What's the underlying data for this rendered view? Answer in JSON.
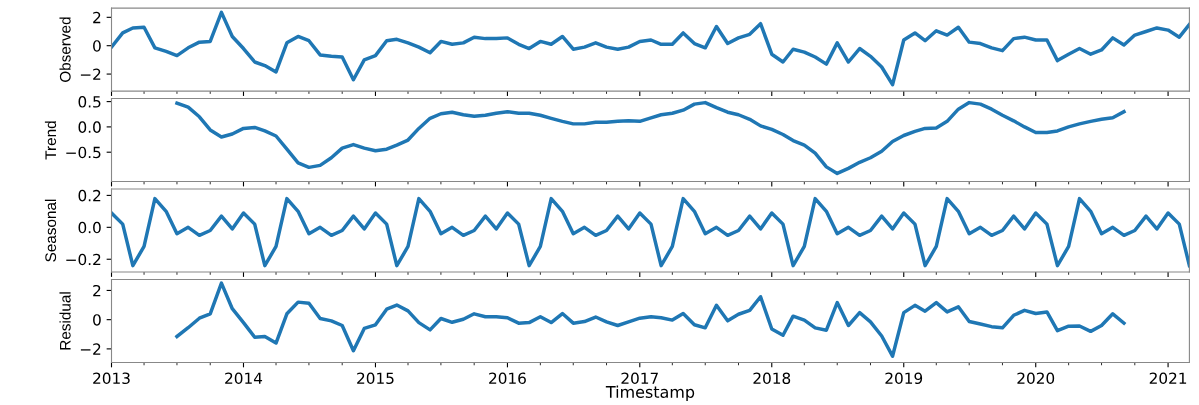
{
  "chart_data": [
    {
      "type": "line",
      "ylabel": "Observed",
      "tick_labels": "y",
      "x": [
        "2013-01",
        "2013-02",
        "2013-03",
        "2013-04",
        "2013-05",
        "2013-06",
        "2013-07",
        "2013-08",
        "2013-09",
        "2013-10",
        "2013-11",
        "2013-12",
        "2014-01",
        "2014-02",
        "2014-03",
        "2014-04",
        "2014-05",
        "2014-06",
        "2014-07",
        "2014-08",
        "2014-09",
        "2014-10",
        "2014-11",
        "2014-12",
        "2015-01",
        "2015-02",
        "2015-03",
        "2015-04",
        "2015-05",
        "2015-06",
        "2015-07",
        "2015-08",
        "2015-09",
        "2015-10",
        "2015-11",
        "2015-12",
        "2016-01",
        "2016-02",
        "2016-03",
        "2016-04",
        "2016-05",
        "2016-06",
        "2016-07",
        "2016-08",
        "2016-09",
        "2016-10",
        "2016-11",
        "2016-12",
        "2017-01",
        "2017-02",
        "2017-03",
        "2017-04",
        "2017-05",
        "2017-06",
        "2017-07",
        "2017-08",
        "2017-09",
        "2017-10",
        "2017-11",
        "2017-12",
        "2018-01",
        "2018-02",
        "2018-03",
        "2018-04",
        "2018-05",
        "2018-06",
        "2018-07",
        "2018-08",
        "2018-09",
        "2018-10",
        "2018-11",
        "2018-12",
        "2019-01",
        "2019-02",
        "2019-03",
        "2019-04",
        "2019-05",
        "2019-06",
        "2019-07",
        "2019-08",
        "2019-09",
        "2019-10",
        "2019-11",
        "2019-12",
        "2020-01",
        "2020-02",
        "2020-03",
        "2020-04",
        "2020-05",
        "2020-06",
        "2020-07",
        "2020-08",
        "2020-09",
        "2020-10",
        "2020-11",
        "2020-12",
        "2021-01",
        "2021-02",
        "2021-03"
      ],
      "series": [
        {
          "color": "#1f77b4",
          "values": [
            -0.1,
            0.9,
            1.25,
            1.3,
            -0.15,
            -0.4,
            -0.7,
            -0.15,
            0.25,
            0.3,
            2.35,
            0.65,
            -0.2,
            -1.15,
            -1.4,
            -1.85,
            0.2,
            0.65,
            0.35,
            -0.65,
            -0.75,
            -0.8,
            -2.4,
            -1.0,
            -0.7,
            0.35,
            0.45,
            0.2,
            -0.1,
            -0.5,
            0.3,
            0.1,
            0.2,
            0.6,
            0.5,
            0.5,
            0.55,
            0.1,
            -0.2,
            0.3,
            0.1,
            0.65,
            -0.25,
            -0.1,
            0.2,
            -0.1,
            -0.25,
            -0.1,
            0.3,
            0.4,
            0.1,
            0.1,
            0.9,
            0.15,
            -0.15,
            1.35,
            0.15,
            0.55,
            0.8,
            1.55,
            -0.6,
            -1.15,
            -0.25,
            -0.45,
            -0.8,
            -1.3,
            0.2,
            -1.15,
            -0.2,
            -0.75,
            -1.5,
            -2.75,
            0.4,
            0.9,
            0.35,
            1.05,
            0.75,
            1.3,
            0.25,
            0.15,
            -0.15,
            -0.35,
            0.5,
            0.6,
            0.4,
            0.4,
            -1.05,
            -0.6,
            -0.2,
            -0.6,
            -0.3,
            0.55,
            0.05,
            0.75,
            1.0,
            1.25,
            1.1,
            0.6,
            1.5
          ]
        }
      ],
      "xlim": [
        "2013-01",
        "2021-03"
      ],
      "xticks": [
        {
          "value": "2013",
          "label": null
        },
        {
          "value": "2013-04",
          "label": null
        },
        {
          "value": "2013-07",
          "label": null
        },
        {
          "value": "2013-10",
          "label": null
        },
        {
          "value": "2014",
          "label": null
        },
        {
          "value": "2014-04",
          "label": null
        },
        {
          "value": "2014-07",
          "label": null
        },
        {
          "value": "2014-10",
          "label": null
        },
        {
          "value": "2015",
          "label": null
        },
        {
          "value": "2015-04",
          "label": null
        },
        {
          "value": "2015-07",
          "label": null
        },
        {
          "value": "2015-10",
          "label": null
        },
        {
          "value": "2016",
          "label": null
        },
        {
          "value": "2016-04",
          "label": null
        },
        {
          "value": "2016-07",
          "label": null
        },
        {
          "value": "2016-10",
          "label": null
        },
        {
          "value": "2017",
          "label": null
        },
        {
          "value": "2017-04",
          "label": null
        },
        {
          "value": "2017-07",
          "label": null
        },
        {
          "value": "2017-10",
          "label": null
        },
        {
          "value": "2018",
          "label": null
        },
        {
          "value": "2018-04",
          "label": null
        },
        {
          "value": "2018-07",
          "label": null
        },
        {
          "value": "2018-10",
          "label": null
        },
        {
          "value": "2019",
          "label": null
        },
        {
          "value": "2019-04",
          "label": null
        },
        {
          "value": "2019-07",
          "label": null
        },
        {
          "value": "2019-10",
          "label": null
        },
        {
          "value": "2020",
          "label": null
        },
        {
          "value": "2020-04",
          "label": null
        },
        {
          "value": "2020-07",
          "label": null
        },
        {
          "value": "2020-10",
          "label": null
        },
        {
          "value": "2021",
          "label": null
        }
      ],
      "ylim": [
        -3.2,
        2.65
      ],
      "yticks": [
        {
          "value": -2,
          "label": "−2"
        },
        0,
        2
      ]
    },
    {
      "type": "line",
      "ylabel": "Trend",
      "tick_labels": "y",
      "x": [
        "2013-07",
        "2013-08",
        "2013-09",
        "2013-10",
        "2013-11",
        "2013-12",
        "2014-01",
        "2014-02",
        "2014-03",
        "2014-04",
        "2014-05",
        "2014-06",
        "2014-07",
        "2014-08",
        "2014-09",
        "2014-10",
        "2014-11",
        "2014-12",
        "2015-01",
        "2015-02",
        "2015-03",
        "2015-04",
        "2015-05",
        "2015-06",
        "2015-07",
        "2015-08",
        "2015-09",
        "2015-10",
        "2015-11",
        "2015-12",
        "2016-01",
        "2016-02",
        "2016-03",
        "2016-04",
        "2016-05",
        "2016-06",
        "2016-07",
        "2016-08",
        "2016-09",
        "2016-10",
        "2016-11",
        "2016-12",
        "2017-01",
        "2017-02",
        "2017-03",
        "2017-04",
        "2017-05",
        "2017-06",
        "2017-07",
        "2017-08",
        "2017-09",
        "2017-10",
        "2017-11",
        "2017-12",
        "2018-01",
        "2018-02",
        "2018-03",
        "2018-04",
        "2018-05",
        "2018-06",
        "2018-07",
        "2018-08",
        "2018-09",
        "2018-10",
        "2018-11",
        "2018-12",
        "2019-01",
        "2019-02",
        "2019-03",
        "2019-04",
        "2019-05",
        "2019-06",
        "2019-07",
        "2019-08",
        "2019-09",
        "2019-10",
        "2019-11",
        "2019-12",
        "2020-01",
        "2020-02",
        "2020-03",
        "2020-04",
        "2020-05",
        "2020-06",
        "2020-07",
        "2020-08",
        "2020-09"
      ],
      "series": [
        {
          "color": "#1f77b4",
          "values": [
            0.47,
            0.39,
            0.2,
            -0.06,
            -0.2,
            -0.14,
            -0.03,
            -0.01,
            -0.08,
            -0.18,
            -0.44,
            -0.71,
            -0.8,
            -0.76,
            -0.61,
            -0.42,
            -0.35,
            -0.42,
            -0.47,
            -0.44,
            -0.36,
            -0.26,
            -0.03,
            0.17,
            0.26,
            0.29,
            0.24,
            0.21,
            0.23,
            0.27,
            0.3,
            0.27,
            0.27,
            0.23,
            0.17,
            0.11,
            0.06,
            0.06,
            0.09,
            0.09,
            0.11,
            0.12,
            0.11,
            0.18,
            0.24,
            0.27,
            0.33,
            0.45,
            0.48,
            0.38,
            0.29,
            0.24,
            0.15,
            0.02,
            -0.05,
            -0.15,
            -0.27,
            -0.36,
            -0.52,
            -0.79,
            -0.92,
            -0.82,
            -0.7,
            -0.61,
            -0.48,
            -0.29,
            -0.17,
            -0.09,
            -0.03,
            -0.02,
            0.11,
            0.35,
            0.48,
            0.45,
            0.35,
            0.23,
            0.12,
            0.0,
            -0.11,
            -0.11,
            -0.08,
            0.0,
            0.06,
            0.11,
            0.15,
            0.18,
            0.3
          ]
        }
      ],
      "xlim": [
        "2013-01",
        "2021-03"
      ],
      "xticks": [
        {
          "value": "2013",
          "label": null
        },
        {
          "value": "2013-04",
          "label": null
        },
        {
          "value": "2013-07",
          "label": null
        },
        {
          "value": "2013-10",
          "label": null
        },
        {
          "value": "2014",
          "label": null
        },
        {
          "value": "2014-04",
          "label": null
        },
        {
          "value": "2014-07",
          "label": null
        },
        {
          "value": "2014-10",
          "label": null
        },
        {
          "value": "2015",
          "label": null
        },
        {
          "value": "2015-04",
          "label": null
        },
        {
          "value": "2015-07",
          "label": null
        },
        {
          "value": "2015-10",
          "label": null
        },
        {
          "value": "2016",
          "label": null
        },
        {
          "value": "2016-04",
          "label": null
        },
        {
          "value": "2016-07",
          "label": null
        },
        {
          "value": "2016-10",
          "label": null
        },
        {
          "value": "2017",
          "label": null
        },
        {
          "value": "2017-04",
          "label": null
        },
        {
          "value": "2017-07",
          "label": null
        },
        {
          "value": "2017-10",
          "label": null
        },
        {
          "value": "2018",
          "label": null
        },
        {
          "value": "2018-04",
          "label": null
        },
        {
          "value": "2018-07",
          "label": null
        },
        {
          "value": "2018-10",
          "label": null
        },
        {
          "value": "2019",
          "label": null
        },
        {
          "value": "2019-04",
          "label": null
        },
        {
          "value": "2019-07",
          "label": null
        },
        {
          "value": "2019-10",
          "label": null
        },
        {
          "value": "2020",
          "label": null
        },
        {
          "value": "2020-04",
          "label": null
        },
        {
          "value": "2020-07",
          "label": null
        },
        {
          "value": "2020-10",
          "label": null
        },
        {
          "value": "2021",
          "label": null
        }
      ],
      "ylim": [
        -1.08,
        0.56
      ],
      "yticks": [
        {
          "value": -0.5,
          "label": "−0.5"
        },
        {
          "value": 0,
          "label": "0.0"
        },
        0.5
      ]
    },
    {
      "type": "line",
      "ylabel": "Seasonal",
      "tick_labels": "y",
      "x": [
        "2013-01",
        "2013-02",
        "2013-03",
        "2013-04",
        "2013-05",
        "2013-06",
        "2013-07",
        "2013-08",
        "2013-09",
        "2013-10",
        "2013-11",
        "2013-12",
        "2014-01",
        "2014-02",
        "2014-03",
        "2014-04",
        "2014-05",
        "2014-06",
        "2014-07",
        "2014-08",
        "2014-09",
        "2014-10",
        "2014-11",
        "2014-12",
        "2015-01",
        "2015-02",
        "2015-03",
        "2015-04",
        "2015-05",
        "2015-06",
        "2015-07",
        "2015-08",
        "2015-09",
        "2015-10",
        "2015-11",
        "2015-12",
        "2016-01",
        "2016-02",
        "2016-03",
        "2016-04",
        "2016-05",
        "2016-06",
        "2016-07",
        "2016-08",
        "2016-09",
        "2016-10",
        "2016-11",
        "2016-12",
        "2017-01",
        "2017-02",
        "2017-03",
        "2017-04",
        "2017-05",
        "2017-06",
        "2017-07",
        "2017-08",
        "2017-09",
        "2017-10",
        "2017-11",
        "2017-12",
        "2018-01",
        "2018-02",
        "2018-03",
        "2018-04",
        "2018-05",
        "2018-06",
        "2018-07",
        "2018-08",
        "2018-09",
        "2018-10",
        "2018-11",
        "2018-12",
        "2019-01",
        "2019-02",
        "2019-03",
        "2019-04",
        "2019-05",
        "2019-06",
        "2019-07",
        "2019-08",
        "2019-09",
        "2019-10",
        "2019-11",
        "2019-12",
        "2020-01",
        "2020-02",
        "2020-03",
        "2020-04",
        "2020-05",
        "2020-06",
        "2020-07",
        "2020-08",
        "2020-09",
        "2020-10",
        "2020-11",
        "2020-12",
        "2021-01",
        "2021-02",
        "2021-03"
      ],
      "series": [
        {
          "color": "#1f77b4",
          "values": [
            0.09,
            0.02,
            -0.24,
            -0.12,
            0.18,
            0.1,
            -0.04,
            0.0,
            -0.05,
            -0.02,
            0.07,
            -0.01,
            0.09,
            0.02,
            -0.24,
            -0.12,
            0.18,
            0.1,
            -0.04,
            0.0,
            -0.05,
            -0.02,
            0.07,
            -0.01,
            0.09,
            0.02,
            -0.24,
            -0.12,
            0.18,
            0.1,
            -0.04,
            0.0,
            -0.05,
            -0.02,
            0.07,
            -0.01,
            0.09,
            0.02,
            -0.24,
            -0.12,
            0.18,
            0.1,
            -0.04,
            0.0,
            -0.05,
            -0.02,
            0.07,
            -0.01,
            0.09,
            0.02,
            -0.24,
            -0.12,
            0.18,
            0.1,
            -0.04,
            0.0,
            -0.05,
            -0.02,
            0.07,
            -0.01,
            0.09,
            0.02,
            -0.24,
            -0.12,
            0.18,
            0.1,
            -0.04,
            0.0,
            -0.05,
            -0.02,
            0.07,
            -0.01,
            0.09,
            0.02,
            -0.24,
            -0.12,
            0.18,
            0.1,
            -0.04,
            0.0,
            -0.05,
            -0.02,
            0.07,
            -0.01,
            0.09,
            0.02,
            -0.24,
            -0.12,
            0.18,
            0.1,
            -0.04,
            0.0,
            -0.05,
            -0.02,
            0.07,
            -0.01,
            0.09,
            0.02,
            -0.24
          ]
        }
      ],
      "xlim": [
        "2013-01",
        "2021-03"
      ],
      "xticks": [
        {
          "value": "2013",
          "label": null
        },
        {
          "value": "2013-04",
          "label": null
        },
        {
          "value": "2013-07",
          "label": null
        },
        {
          "value": "2013-10",
          "label": null
        },
        {
          "value": "2014",
          "label": null
        },
        {
          "value": "2014-04",
          "label": null
        },
        {
          "value": "2014-07",
          "label": null
        },
        {
          "value": "2014-10",
          "label": null
        },
        {
          "value": "2015",
          "label": null
        },
        {
          "value": "2015-04",
          "label": null
        },
        {
          "value": "2015-07",
          "label": null
        },
        {
          "value": "2015-10",
          "label": null
        },
        {
          "value": "2016",
          "label": null
        },
        {
          "value": "2016-04",
          "label": null
        },
        {
          "value": "2016-07",
          "label": null
        },
        {
          "value": "2016-10",
          "label": null
        },
        {
          "value": "2017",
          "label": null
        },
        {
          "value": "2017-04",
          "label": null
        },
        {
          "value": "2017-07",
          "label": null
        },
        {
          "value": "2017-10",
          "label": null
        },
        {
          "value": "2018",
          "label": null
        },
        {
          "value": "2018-04",
          "label": null
        },
        {
          "value": "2018-07",
          "label": null
        },
        {
          "value": "2018-10",
          "label": null
        },
        {
          "value": "2019",
          "label": null
        },
        {
          "value": "2019-04",
          "label": null
        },
        {
          "value": "2019-07",
          "label": null
        },
        {
          "value": "2019-10",
          "label": null
        },
        {
          "value": "2020",
          "label": null
        },
        {
          "value": "2020-04",
          "label": null
        },
        {
          "value": "2020-07",
          "label": null
        },
        {
          "value": "2020-10",
          "label": null
        },
        {
          "value": "2021",
          "label": null
        }
      ],
      "ylim": [
        -0.28,
        0.24
      ],
      "yticks": [
        {
          "value": -0.2,
          "label": "−0.2"
        },
        {
          "value": 0,
          "label": "0.0"
        },
        0.2
      ]
    },
    {
      "type": "line",
      "ylabel": "Residual",
      "xlabel": "Timestamp",
      "x": [
        "2013-07",
        "2013-08",
        "2013-09",
        "2013-10",
        "2013-11",
        "2013-12",
        "2014-01",
        "2014-02",
        "2014-03",
        "2014-04",
        "2014-05",
        "2014-06",
        "2014-07",
        "2014-08",
        "2014-09",
        "2014-10",
        "2014-11",
        "2014-12",
        "2015-01",
        "2015-02",
        "2015-03",
        "2015-04",
        "2015-05",
        "2015-06",
        "2015-07",
        "2015-08",
        "2015-09",
        "2015-10",
        "2015-11",
        "2015-12",
        "2016-01",
        "2016-02",
        "2016-03",
        "2016-04",
        "2016-05",
        "2016-06",
        "2016-07",
        "2016-08",
        "2016-09",
        "2016-10",
        "2016-11",
        "2016-12",
        "2017-01",
        "2017-02",
        "2017-03",
        "2017-04",
        "2017-05",
        "2017-06",
        "2017-07",
        "2017-08",
        "2017-09",
        "2017-10",
        "2017-11",
        "2017-12",
        "2018-01",
        "2018-02",
        "2018-03",
        "2018-04",
        "2018-05",
        "2018-06",
        "2018-07",
        "2018-08",
        "2018-09",
        "2018-10",
        "2018-11",
        "2018-12",
        "2019-01",
        "2019-02",
        "2019-03",
        "2019-04",
        "2019-05",
        "2019-06",
        "2019-07",
        "2019-08",
        "2019-09",
        "2019-10",
        "2019-11",
        "2019-12",
        "2020-01",
        "2020-02",
        "2020-03",
        "2020-04",
        "2020-05",
        "2020-06",
        "2020-07",
        "2020-08",
        "2020-09"
      ],
      "series": [
        {
          "color": "#1f77b4",
          "values": [
            -1.15,
            -0.55,
            0.1,
            0.4,
            2.5,
            0.75,
            -0.2,
            -1.2,
            -1.15,
            -1.6,
            0.4,
            1.2,
            1.12,
            0.08,
            -0.08,
            -0.4,
            -2.13,
            -0.6,
            -0.35,
            0.72,
            1.0,
            0.6,
            -0.2,
            -0.7,
            0.08,
            -0.18,
            0.03,
            0.4,
            0.2,
            0.2,
            0.13,
            -0.24,
            -0.2,
            0.2,
            -0.2,
            0.42,
            -0.24,
            -0.13,
            0.18,
            -0.15,
            -0.4,
            -0.15,
            0.1,
            0.2,
            0.13,
            -0.03,
            0.42,
            -0.35,
            -0.56,
            0.98,
            -0.08,
            0.37,
            0.64,
            1.57,
            -0.64,
            -1.07,
            0.24,
            -0.03,
            -0.56,
            -0.72,
            1.17,
            -0.4,
            0.48,
            -0.15,
            -1.12,
            -2.5,
            0.48,
            0.98,
            0.58,
            1.17,
            0.53,
            0.88,
            -0.13,
            -0.3,
            -0.48,
            -0.56,
            0.3,
            0.64,
            0.42,
            0.53,
            -0.75,
            -0.45,
            -0.43,
            -0.8,
            -0.4,
            0.4,
            -0.24
          ]
        }
      ],
      "xlim": [
        "2013-01",
        "2021-03"
      ],
      "xticks": [
        {
          "value": "2013",
          "label": "2013"
        },
        {
          "value": "2013-04",
          "label": null
        },
        {
          "value": "2013-07",
          "label": null
        },
        {
          "value": "2013-10",
          "label": null
        },
        {
          "value": "2014",
          "label": "2014"
        },
        {
          "value": "2014-04",
          "label": null
        },
        {
          "value": "2014-07",
          "label": null
        },
        {
          "value": "2014-10",
          "label": null
        },
        {
          "value": "2015",
          "label": "2015"
        },
        {
          "value": "2015-04",
          "label": null
        },
        {
          "value": "2015-07",
          "label": null
        },
        {
          "value": "2015-10",
          "label": null
        },
        {
          "value": "2016",
          "label": "2016"
        },
        {
          "value": "2016-04",
          "label": null
        },
        {
          "value": "2016-07",
          "label": null
        },
        {
          "value": "2016-10",
          "label": null
        },
        {
          "value": "2017",
          "label": "2017"
        },
        {
          "value": "2017-04",
          "label": null
        },
        {
          "value": "2017-07",
          "label": null
        },
        {
          "value": "2017-10",
          "label": null
        },
        {
          "value": "2018",
          "label": "2018"
        },
        {
          "value": "2018-04",
          "label": null
        },
        {
          "value": "2018-07",
          "label": null
        },
        {
          "value": "2018-10",
          "label": null
        },
        {
          "value": "2019",
          "label": "2019"
        },
        {
          "value": "2019-04",
          "label": null
        },
        {
          "value": "2019-07",
          "label": null
        },
        {
          "value": "2019-10",
          "label": null
        },
        {
          "value": "2020",
          "label": "2020"
        },
        {
          "value": "2020-04",
          "label": null
        },
        {
          "value": "2020-07",
          "label": null
        },
        {
          "value": "2020-10",
          "label": null
        },
        {
          "value": "2021",
          "label": "2021"
        }
      ],
      "ylim": [
        -2.93,
        2.75
      ],
      "yticks": [
        {
          "value": -2,
          "label": "−2"
        },
        0,
        2
      ]
    }
  ]
}
